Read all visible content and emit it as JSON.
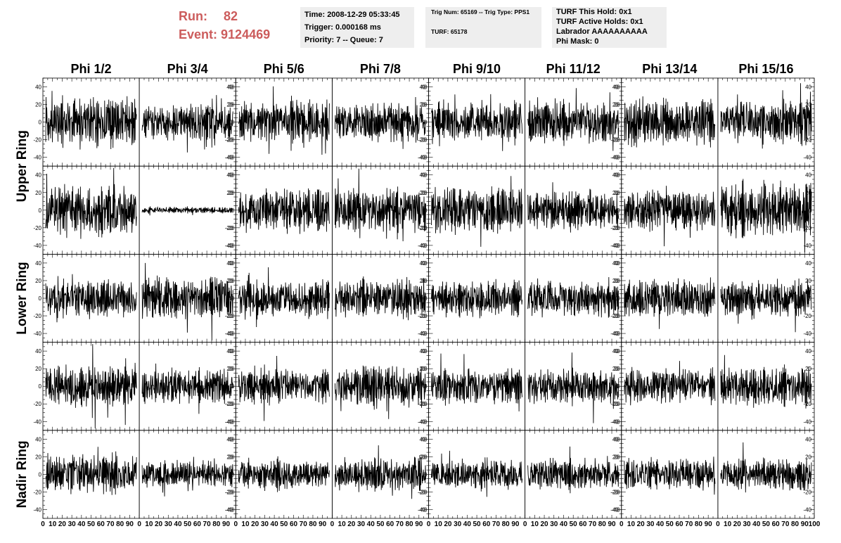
{
  "header": {
    "run_label": "Run:",
    "run_value": "82",
    "event_label": "Event:",
    "event_value": "9124469",
    "time": "Time: 2008-12-29 05:33:45",
    "trigger": "Trigger: 0.000168 ms",
    "priority": "Priority: 7 -- Queue: 7",
    "trig_num": "Trig Num: 65169 -- Trig Type: PPS1",
    "turf": "TURF: 65178",
    "turf_this_hold": "TURF This Hold: 0x1",
    "turf_active_holds": "TURF Active Holds: 0x1",
    "labrador": "Labrador AAAAAAAAAA",
    "phi_mask": "Phi Mask: 0"
  },
  "colors": {
    "header_red": "#cc5c5c",
    "info_bg": "#eeeeee",
    "trace": "#000000"
  },
  "chart_data": {
    "type": "line",
    "columns": [
      "Phi 1/2",
      "Phi 3/4",
      "Phi 5/6",
      "Phi 7/8",
      "Phi 9/10",
      "Phi 11/12",
      "Phi 13/14",
      "Phi 15/16"
    ],
    "ring_labels": [
      "Upper Ring",
      "Lower Ring",
      "Nadir Ring"
    ],
    "rows": 5,
    "xlim": [
      0,
      100
    ],
    "ylim": [
      -50,
      50
    ],
    "x_ticks": [
      "0",
      "10",
      "20",
      "30",
      "40",
      "50",
      "60",
      "70",
      "80",
      "90",
      "100"
    ],
    "y_ticks": [
      "40",
      "20",
      "0",
      "-20",
      "-40"
    ],
    "samples_per_trace": 260,
    "trace_amplitude": [
      [
        16,
        12,
        14,
        13,
        14,
        14,
        15,
        14
      ],
      [
        18,
        2,
        14,
        15,
        15,
        13,
        13,
        18
      ],
      [
        13,
        14,
        12,
        13,
        12,
        12,
        13,
        12
      ],
      [
        14,
        11,
        12,
        14,
        12,
        12,
        12,
        13
      ],
      [
        13,
        9,
        10,
        11,
        10,
        11,
        11,
        11
      ]
    ]
  }
}
